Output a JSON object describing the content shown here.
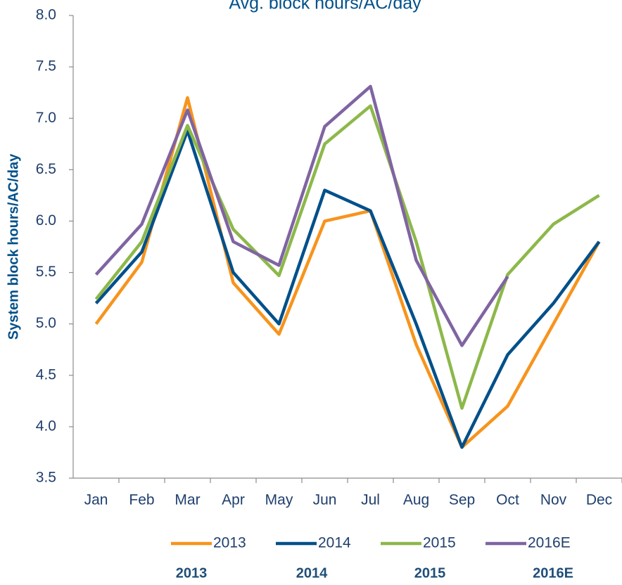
{
  "chart_data": {
    "type": "line",
    "title": "Avg. block hours/AC/day",
    "y_label": "System block hours/AC/day",
    "categories": [
      "Jan",
      "Feb",
      "Mar",
      "Apr",
      "May",
      "Jun",
      "Jul",
      "Aug",
      "Sep",
      "Oct",
      "Nov",
      "Dec"
    ],
    "series": [
      {
        "name": "2013",
        "color": "#f7941d",
        "values": [
          5.0,
          5.6,
          7.2,
          5.4,
          4.9,
          6.0,
          6.1,
          4.8,
          3.8,
          4.2,
          5.0,
          5.8
        ]
      },
      {
        "name": "2014",
        "color": "#00508a",
        "values": [
          5.2,
          5.7,
          6.88,
          5.5,
          5.0,
          6.3,
          6.1,
          5.0,
          3.8,
          4.7,
          5.2,
          5.8
        ]
      },
      {
        "name": "2015",
        "color": "#8db84a",
        "values": [
          5.24,
          5.8,
          6.93,
          5.92,
          5.47,
          6.75,
          7.12,
          5.8,
          4.18,
          5.48,
          5.97,
          6.25
        ]
      },
      {
        "name": "2016E",
        "color": "#8064a2",
        "values": [
          5.48,
          5.97,
          7.08,
          5.8,
          5.57,
          6.92,
          7.31,
          5.62,
          4.79,
          5.46,
          null,
          null
        ]
      }
    ],
    "ylim": [
      3.5,
      8.0
    ],
    "yticks": [
      {
        "value": 3.5,
        "label": "3.5"
      },
      {
        "value": 4,
        "label": "4.0"
      },
      {
        "value": 4.5,
        "label": "4.5"
      },
      {
        "value": 5,
        "label": "5.0"
      },
      {
        "value": 5.5,
        "label": "5.5"
      },
      {
        "value": 6,
        "label": "6.0"
      },
      {
        "value": 6.5,
        "label": "6.5"
      },
      {
        "value": 7,
        "label": "7.0"
      },
      {
        "value": 7.5,
        "label": "7.5"
      },
      {
        "value": 8,
        "label": "8.0"
      }
    ],
    "grid": false,
    "legend": "bottom",
    "footer_labels": [
      "2013",
      "2014",
      "2015",
      "2016E"
    ]
  }
}
